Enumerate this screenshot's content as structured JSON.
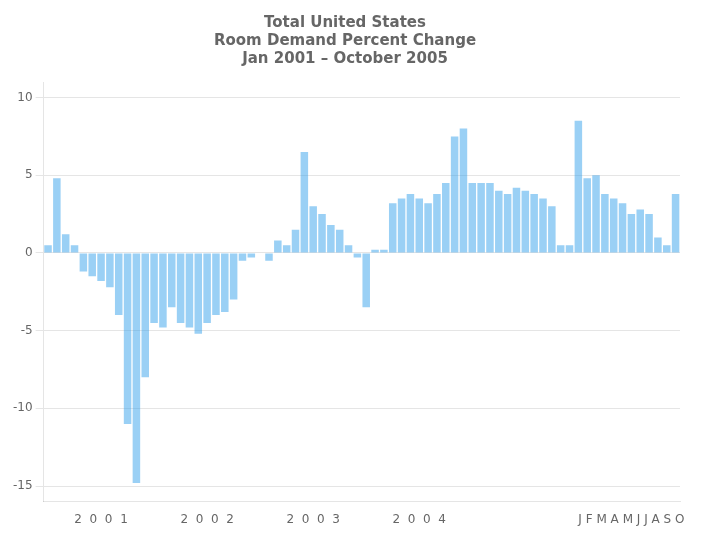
{
  "chart_data": {
    "type": "bar",
    "title": "Total United States\nRoom Demand Percent Change\nJan 2001 – October 2005",
    "categories": [
      null,
      null,
      null,
      null,
      null,
      null,
      "2  0  0  1",
      null,
      null,
      null,
      null,
      null,
      null,
      null,
      null,
      null,
      null,
      null,
      "2  0  0  2",
      null,
      null,
      null,
      null,
      null,
      null,
      null,
      null,
      null,
      null,
      null,
      "2  0  0  3",
      null,
      null,
      null,
      null,
      null,
      null,
      null,
      null,
      null,
      null,
      null,
      "2  0  0  4",
      null,
      null,
      null,
      null,
      null,
      null,
      null,
      null,
      null,
      null,
      null,
      null,
      null,
      null,
      null,
      null,
      null,
      null,
      null,
      null,
      null,
      null,
      null,
      "J F M A M J J A S O",
      null,
      null,
      null,
      null,
      null
    ],
    "values": [
      0.5,
      4.8,
      1.2,
      0.5,
      -1.2,
      -1.5,
      -1.8,
      -2.2,
      -4.0,
      -11.0,
      -14.8,
      -8.0,
      -4.5,
      -4.8,
      -3.5,
      -4.5,
      -4.8,
      -5.2,
      -4.5,
      -4.0,
      -3.8,
      -3.0,
      -0.5,
      -0.3,
      0.0,
      -0.5,
      0.8,
      0.5,
      1.5,
      6.5,
      3.0,
      2.5,
      1.8,
      1.5,
      0.5,
      -0.3,
      -3.5,
      0.2,
      0.2,
      3.2,
      3.5,
      3.8,
      3.5,
      3.2,
      3.8,
      4.5,
      7.5,
      8.0,
      4.5,
      4.5,
      4.5,
      4.0,
      3.8,
      4.2,
      4.0,
      3.8,
      3.5,
      3.0,
      0.5,
      0.5,
      8.5,
      4.8,
      5.0,
      3.8,
      3.5,
      3.2,
      2.5,
      2.8,
      2.5,
      1.0,
      0.5,
      3.8
    ],
    "ylim": [
      -16,
      11
    ],
    "yticks": [
      -15,
      -10,
      -5,
      0,
      5,
      10
    ],
    "grid": true
  }
}
